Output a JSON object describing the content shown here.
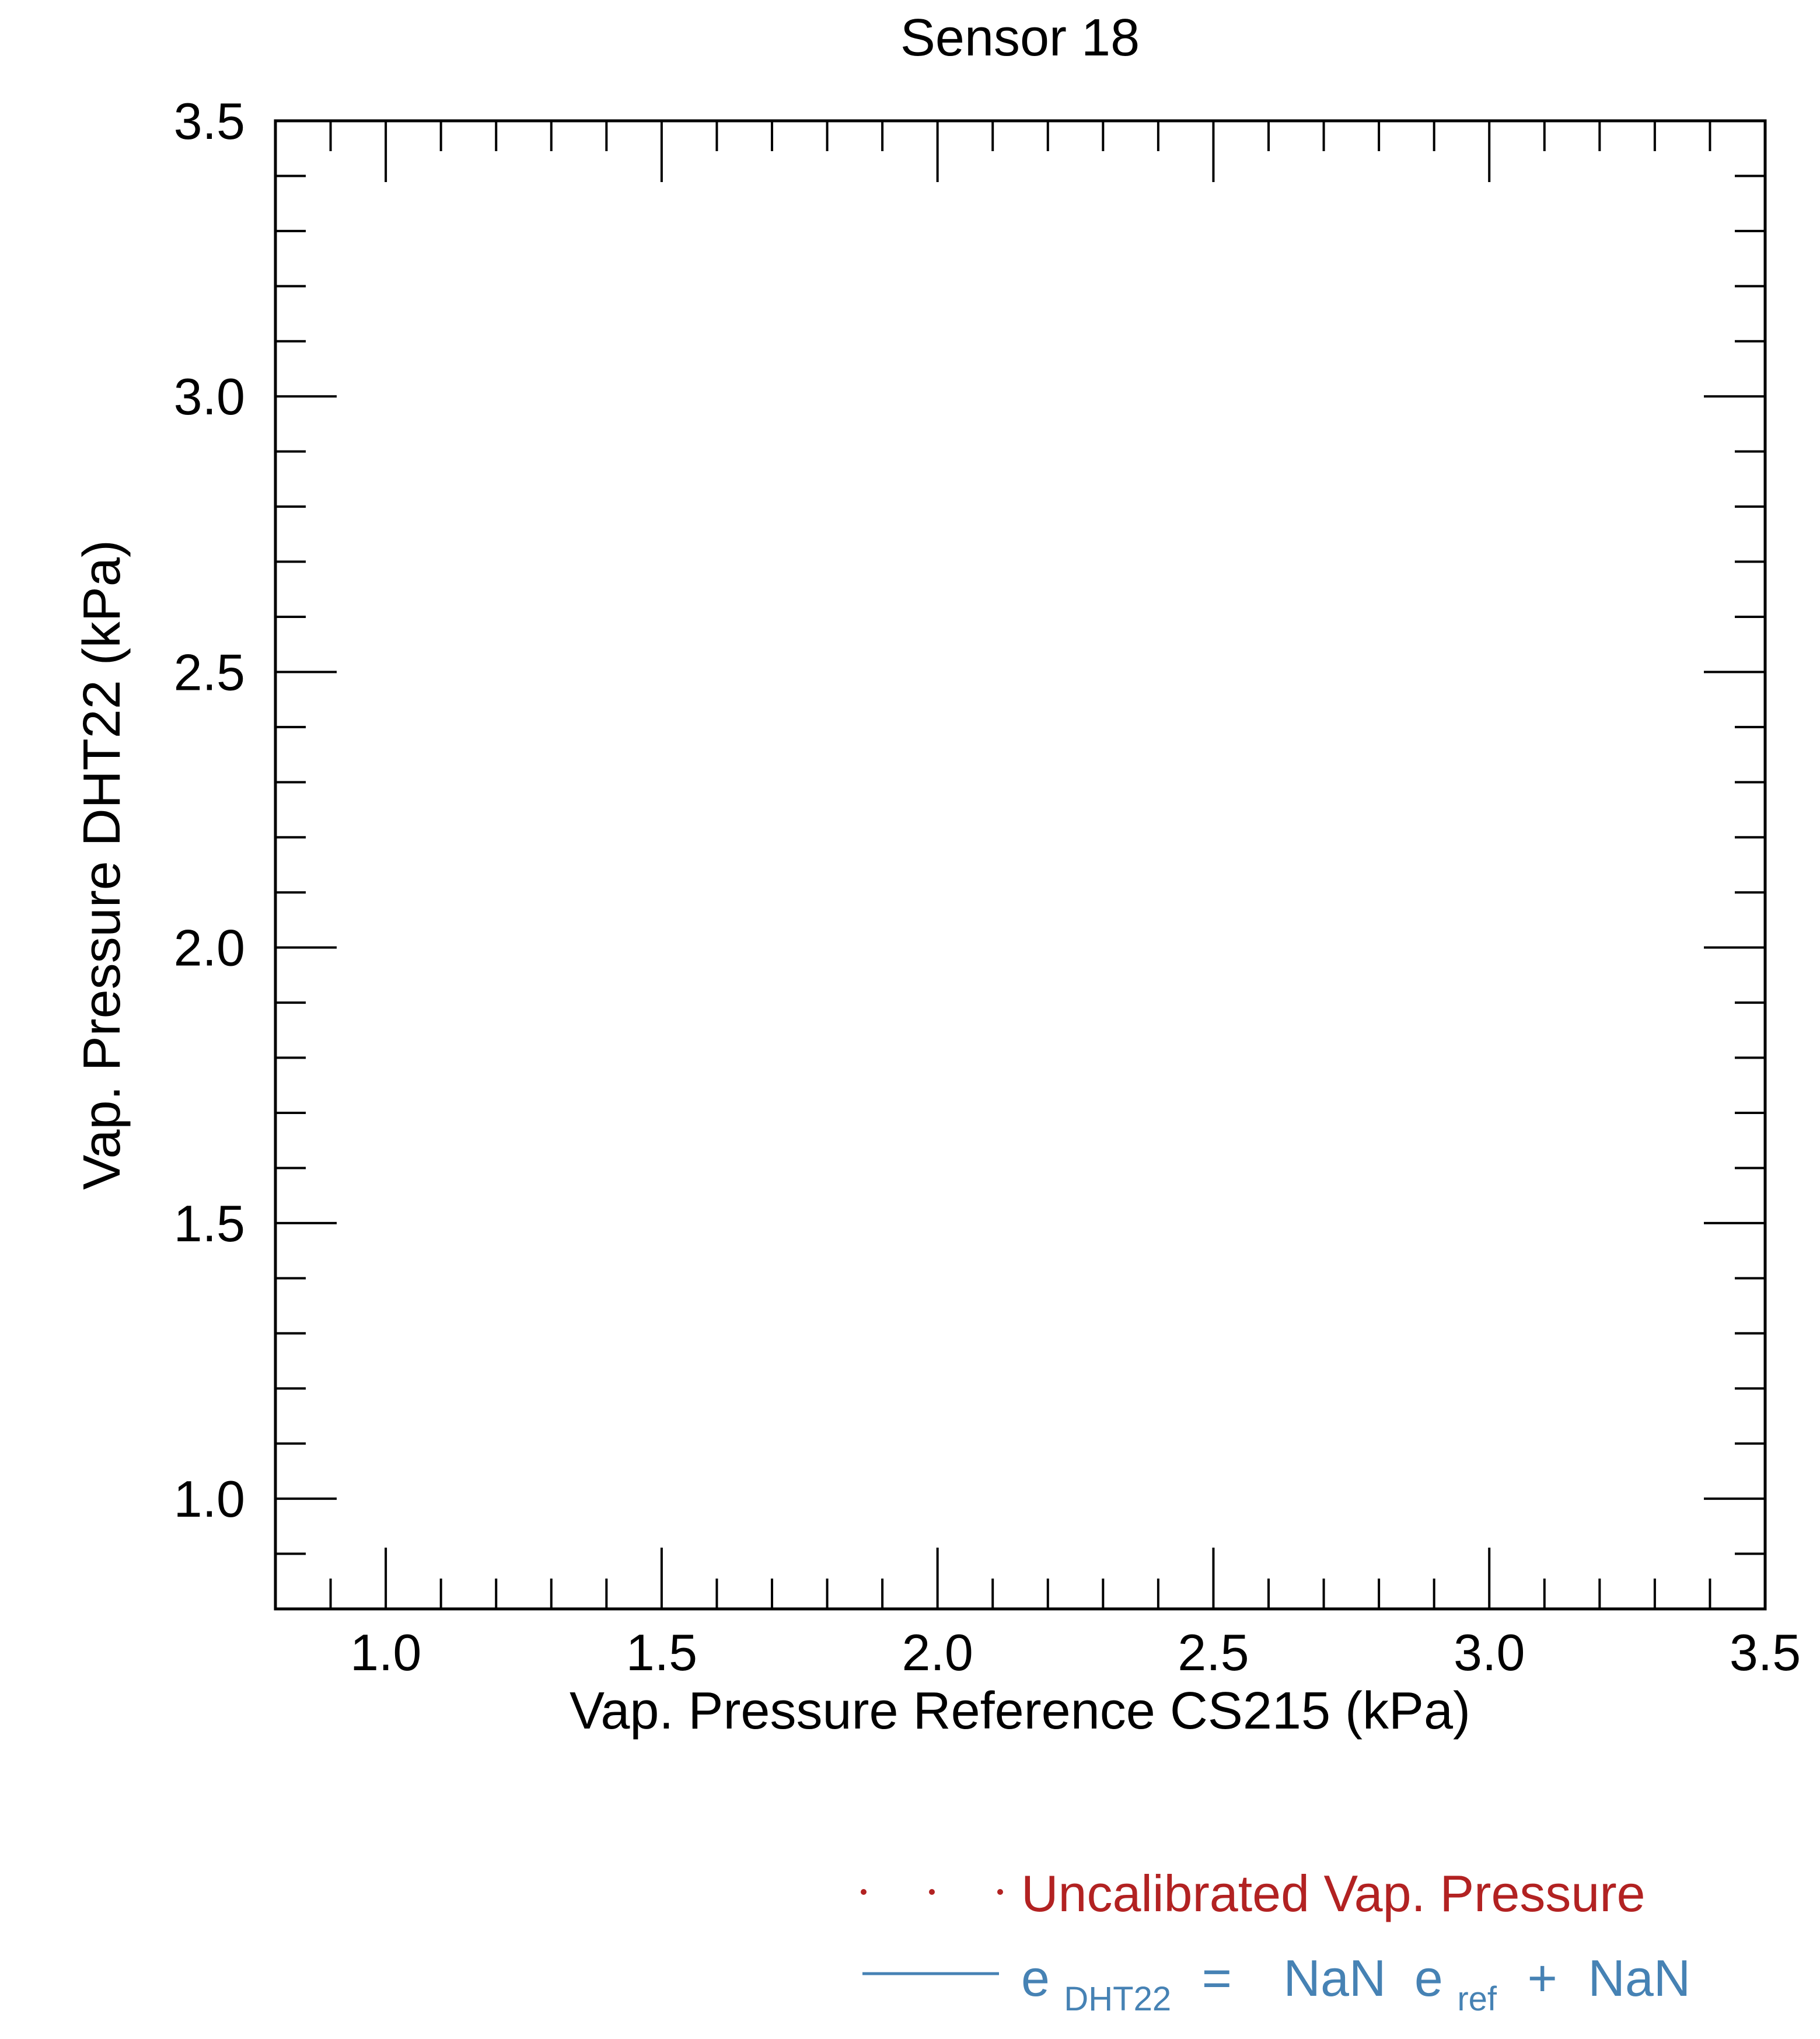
{
  "chart_data": {
    "type": "scatter",
    "title": "Sensor 18",
    "xlabel": "Vap. Pressure Reference CS215 (kPa)",
    "ylabel": "Vap. Pressure DHT22 (kPa)",
    "xlim": [
      0.8,
      3.5
    ],
    "ylim": [
      0.8,
      3.5
    ],
    "x_ticks": [
      "1.0",
      "1.5",
      "2.0",
      "2.5",
      "3.0",
      "3.5"
    ],
    "y_ticks": [
      "1.0",
      "1.5",
      "2.0",
      "2.5",
      "3.0",
      "3.5"
    ],
    "grid": false,
    "legend_position": "bottom-right",
    "series": [
      {
        "name": "Uncalibrated Vap. Pressure",
        "kind": "points",
        "color": "#b22222",
        "x": [],
        "y": []
      },
      {
        "name": "fit",
        "kind": "line",
        "color": "#4682b4",
        "x": [],
        "y": []
      }
    ],
    "legend": {
      "points_label": "Uncalibrated Vap. Pressure",
      "fit_label": {
        "e": "e",
        "e_sub": "DHT22",
        "equals": "=",
        "slope": "NaN",
        "e_ref": "e",
        "e_ref_sub": "ref",
        "plus": "+",
        "intercept": "NaN"
      }
    }
  }
}
